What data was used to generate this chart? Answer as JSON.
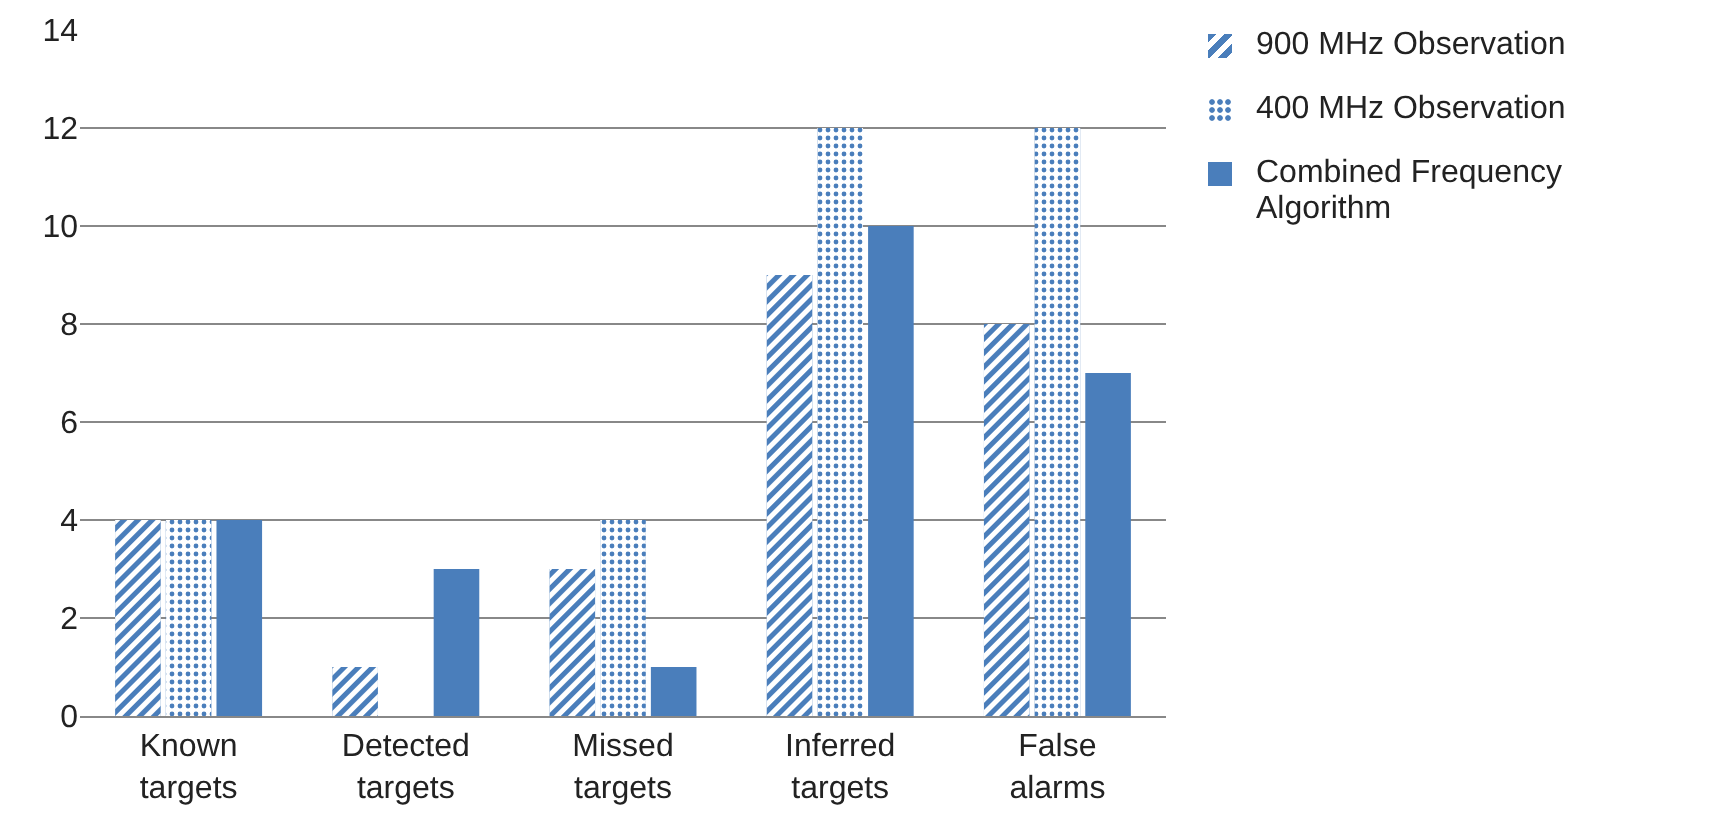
{
  "chart_data": {
    "type": "bar",
    "categories": [
      "Known targets",
      "Detected targets",
      "Missed targets",
      "Inferred targets",
      "False alarms"
    ],
    "series": [
      {
        "name": "900 MHz Observation",
        "color": "#4a7ebb",
        "values": [
          4,
          1,
          3,
          9,
          8
        ]
      },
      {
        "name": "400 MHz Observation",
        "color": "#4a7ebb",
        "values": [
          4,
          0,
          4,
          12,
          12
        ]
      },
      {
        "name": "Combined Frequency Algorithm",
        "color": "#4a7ebb",
        "values": [
          4,
          3,
          1,
          10,
          7
        ]
      }
    ],
    "ylim": [
      0,
      14
    ],
    "yticks": [
      0,
      2,
      4,
      6,
      8,
      10,
      12,
      14
    ],
    "grid": "y",
    "legend": "right"
  }
}
